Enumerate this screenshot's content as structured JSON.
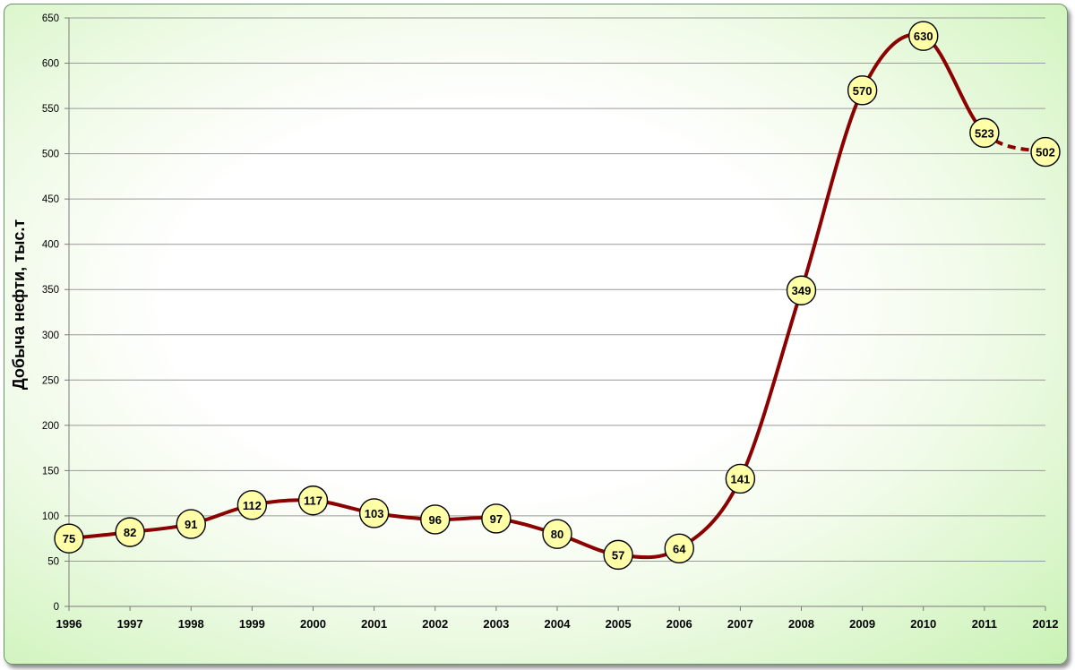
{
  "chart_data": {
    "type": "line",
    "title": "",
    "xlabel": "",
    "ylabel": "Добыча нефти, тыс.т",
    "categories": [
      "1996",
      "1997",
      "1998",
      "1999",
      "2000",
      "2001",
      "2002",
      "2003",
      "2004",
      "2005",
      "2006",
      "2007",
      "2008",
      "2009",
      "2010",
      "2011",
      "2012"
    ],
    "series": [
      {
        "values": [
          75,
          82,
          91,
          112,
          117,
          103,
          96,
          97,
          80,
          57,
          64,
          141,
          349,
          570,
          630,
          523,
          502
        ],
        "color": "#8b0000",
        "smoothed": true,
        "dashed_last_segment": true
      }
    ],
    "ylim": [
      0,
      650
    ],
    "yticks": [
      0,
      50,
      100,
      150,
      200,
      250,
      300,
      350,
      400,
      450,
      500,
      550,
      600,
      650
    ],
    "grid": true,
    "legend": "none",
    "marker_fill": "#ffffa8"
  }
}
